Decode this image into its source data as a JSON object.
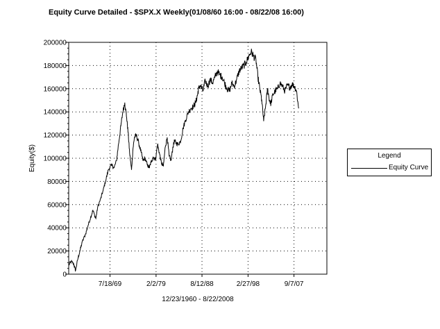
{
  "chart_data": {
    "type": "line",
    "title": "Equity Curve Detailed - $SPX.X Weekly(01/08/60 16:00 - 08/22/08 16:00)",
    "xlabel": "12/23/1960 - 8/22/2008",
    "ylabel": "Equity($)",
    "ylim": [
      0,
      200000
    ],
    "xlim": [
      1960.98,
      2014.5
    ],
    "y_ticks": [
      "0",
      "20000",
      "40000",
      "60000",
      "80000",
      "100000",
      "120000",
      "140000",
      "160000",
      "180000",
      "200000"
    ],
    "x_ticks": [
      {
        "label": "7/18/69",
        "x": 1969.54
      },
      {
        "label": "2/2/79",
        "x": 1979.09
      },
      {
        "label": "8/12/88",
        "x": 1988.61
      },
      {
        "label": "2/27/98",
        "x": 1998.16
      },
      {
        "label": "9/7/07",
        "x": 2007.68
      }
    ],
    "grid": true,
    "legend_position": "right",
    "series": [
      {
        "name": "Equity Curve",
        "x": [
          1960.98,
          1961.5,
          1962.0,
          1962.4,
          1962.8,
          1963.3,
          1963.8,
          1964.5,
          1965.0,
          1965.6,
          1966.0,
          1966.6,
          1967.0,
          1967.6,
          1968.1,
          1968.6,
          1969.2,
          1969.8,
          1970.4,
          1970.9,
          1971.3,
          1971.8,
          1972.2,
          1972.6,
          1973.0,
          1973.3,
          1973.6,
          1974.0,
          1974.3,
          1974.6,
          1975.0,
          1975.5,
          1976.0,
          1976.4,
          1976.8,
          1977.3,
          1977.7,
          1978.0,
          1978.5,
          1979.0,
          1979.4,
          1979.8,
          1980.2,
          1980.6,
          1981.0,
          1981.4,
          1981.8,
          1982.2,
          1982.6,
          1982.9,
          1983.3,
          1983.7,
          1984.2,
          1984.7,
          1985.2,
          1985.8,
          1986.3,
          1986.9,
          1987.3,
          1987.7,
          1987.9,
          1988.3,
          1988.8,
          1989.3,
          1989.8,
          1990.3,
          1990.8,
          1991.3,
          1991.8,
          1992.3,
          1992.8,
          1993.3,
          1993.8,
          1994.3,
          1994.8,
          1995.3,
          1995.8,
          1996.3,
          1996.8,
          1997.3,
          1997.8,
          1998.3,
          1998.8,
          1999.3,
          1999.8,
          2000.2,
          2000.6,
          2001.0,
          2001.4,
          2001.8,
          2002.2,
          2002.6,
          2002.9,
          2003.3,
          2003.8,
          2004.3,
          2004.8,
          2005.3,
          2005.8,
          2006.3,
          2006.8,
          2007.3,
          2007.8,
          2008.2,
          2008.64
        ],
        "values": [
          8000,
          11000,
          9000,
          3000,
          12000,
          20000,
          28000,
          35000,
          42000,
          50000,
          55000,
          48000,
          58000,
          65000,
          72000,
          80000,
          90000,
          94000,
          92000,
          98000,
          112000,
          128000,
          140000,
          148000,
          135000,
          122000,
          105000,
          90000,
          108000,
          118000,
          120000,
          113000,
          105000,
          98000,
          100000,
          94000,
          92000,
          96000,
          101000,
          99000,
          112000,
          104000,
          96000,
          93000,
          110000,
          118000,
          102000,
          98000,
          110000,
          115000,
          113000,
          112000,
          115000,
          126000,
          133000,
          140000,
          143000,
          145000,
          148000,
          155000,
          160000,
          163000,
          158000,
          167000,
          162000,
          168000,
          165000,
          170000,
          175000,
          172000,
          170000,
          165000,
          160000,
          158000,
          165000,
          162000,
          168000,
          175000,
          178000,
          180000,
          183000,
          188000,
          192000,
          188000,
          185000,
          170000,
          160000,
          150000,
          132000,
          145000,
          160000,
          150000,
          147000,
          155000,
          158000,
          160000,
          165000,
          162000,
          158000,
          163000,
          161000,
          164000,
          162000,
          158000,
          143000
        ]
      }
    ]
  },
  "legend": {
    "title": "Legend",
    "items": [
      {
        "label": "Equity Curve"
      }
    ]
  }
}
